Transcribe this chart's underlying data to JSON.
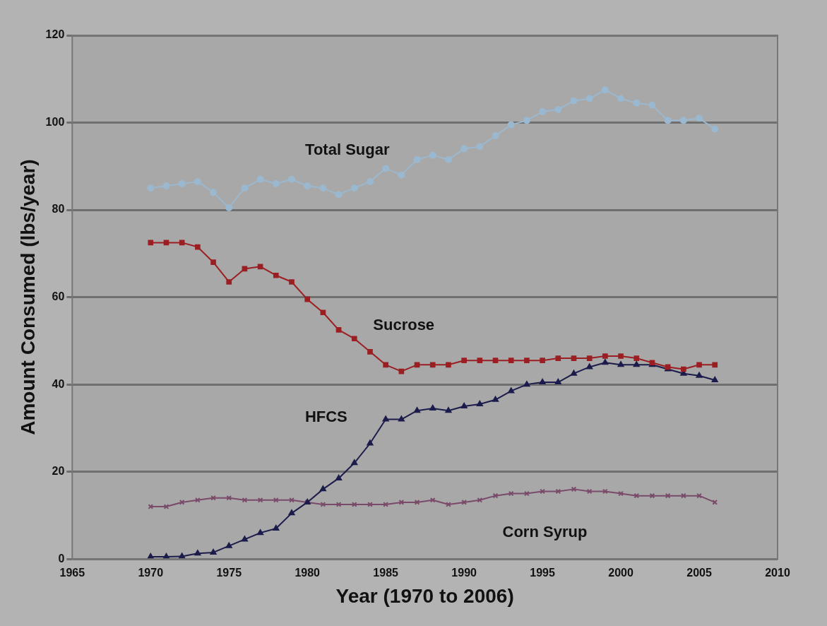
{
  "chart_data": {
    "type": "line",
    "xlabel": "Year (1970 to 2006)",
    "ylabel": "Amount Consumed (lbs/year)",
    "x": [
      1970,
      1971,
      1972,
      1973,
      1974,
      1975,
      1976,
      1977,
      1978,
      1979,
      1980,
      1981,
      1982,
      1983,
      1984,
      1985,
      1986,
      1987,
      1988,
      1989,
      1990,
      1991,
      1992,
      1993,
      1994,
      1995,
      1996,
      1997,
      1998,
      1999,
      2000,
      2001,
      2002,
      2003,
      2004,
      2005,
      2006
    ],
    "series": [
      {
        "name": "Total Sugar",
        "color": "#9ab8cf",
        "marker": "circle",
        "values": [
          85,
          85.5,
          86,
          86.5,
          84,
          80.5,
          85,
          87,
          86,
          87,
          85.5,
          85,
          83.5,
          85,
          86.5,
          89.5,
          88,
          91.5,
          92.5,
          91.5,
          94,
          94.5,
          97,
          99.5,
          100.5,
          102.5,
          103,
          105,
          105.5,
          107.5,
          105.5,
          104.5,
          104,
          100.5,
          100.5,
          101,
          98.5
        ]
      },
      {
        "name": "Sucrose",
        "color": "#9b1f22",
        "marker": "square",
        "values": [
          72.5,
          72.5,
          72.5,
          71.5,
          68,
          63.5,
          66.5,
          67,
          65,
          63.5,
          59.5,
          56.5,
          52.5,
          50.5,
          47.5,
          44.5,
          43,
          44.5,
          44.5,
          44.5,
          45.5,
          45.5,
          45.5,
          45.5,
          45.5,
          45.5,
          46,
          46,
          46,
          46.5,
          46.5,
          46,
          45,
          44,
          43.5,
          44.5,
          44.5
        ]
      },
      {
        "name": "HFCS",
        "color": "#1c1c4c",
        "marker": "triangle",
        "values": [
          0.5,
          0.5,
          0.6,
          1.3,
          1.5,
          3,
          4.5,
          6,
          7,
          10.5,
          13,
          16,
          18.5,
          22,
          26.5,
          32,
          32,
          34,
          34.5,
          34,
          35,
          35.5,
          36.5,
          38.5,
          40,
          40.5,
          40.5,
          42.5,
          44,
          45,
          44.5,
          44.5,
          44.5,
          43.5,
          42.5,
          42,
          41
        ]
      },
      {
        "name": "Corn Syrup",
        "color": "#7a4a6a",
        "marker": "cross",
        "values": [
          12,
          12,
          13,
          13.5,
          14,
          14,
          13.5,
          13.5,
          13.5,
          13.5,
          13,
          12.5,
          12.5,
          12.5,
          12.5,
          12.5,
          13,
          13,
          13.5,
          12.5,
          13,
          13.5,
          14.5,
          15,
          15,
          15.5,
          15.5,
          16,
          15.5,
          15.5,
          15,
          14.5,
          14.5,
          14.5,
          14.5,
          14.5,
          13
        ]
      }
    ],
    "xlim": [
      1965,
      2010
    ],
    "xticks": [
      1965,
      1970,
      1975,
      1980,
      1985,
      1990,
      1995,
      2000,
      2005,
      2010
    ],
    "ylim": [
      0,
      120
    ],
    "yticks": [
      0,
      20,
      40,
      60,
      80,
      100,
      120
    ],
    "grid": "y",
    "legend": false
  }
}
